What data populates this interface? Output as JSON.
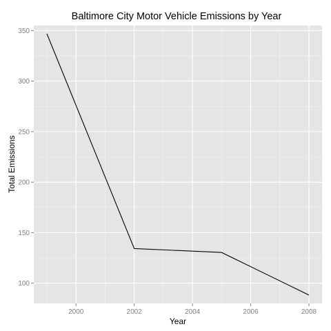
{
  "chart_data": {
    "type": "line",
    "title": "Baltimore City Motor Vehicle Emissions by Year",
    "xlabel": "Year",
    "ylabel": "Total Emissions",
    "x": [
      1999,
      2002,
      2005,
      2008
    ],
    "series": [
      {
        "values": [
          346.82,
          134.31,
          130.43,
          88.28
        ]
      }
    ],
    "xlim": [
      1999,
      2008
    ],
    "ylim": [
      80,
      355
    ],
    "xticks": [
      2000,
      2002,
      2004,
      2006,
      2008
    ],
    "yticks": [
      100,
      150,
      200,
      250,
      300,
      350
    ],
    "grid": true,
    "colors": {
      "panel_background": "#e5e5e5",
      "line": "#000000",
      "grid": "#ffffff"
    }
  }
}
